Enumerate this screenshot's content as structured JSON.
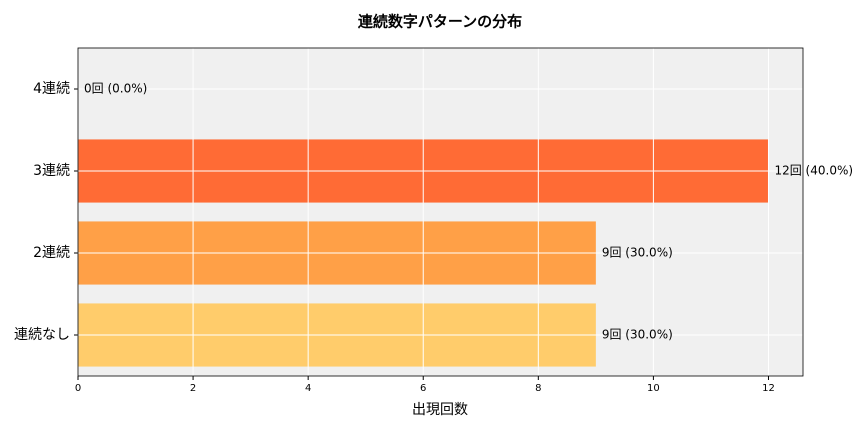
{
  "chart_data": {
    "type": "barh",
    "title": "連続数字パターンの分布",
    "xlabel": "出現回数",
    "categories": [
      "4連続",
      "3連続",
      "2連続",
      "連続なし"
    ],
    "values": [
      0,
      12,
      9,
      9
    ],
    "value_labels": [
      "0回 (0.0%)",
      "12回 (40.0%)",
      "9回 (30.0%)",
      "9回 (30.0%)"
    ],
    "colors": [
      "#ff3b30",
      "#ff6b35",
      "#ffa047",
      "#ffcc6b"
    ],
    "xlim": [
      0,
      12.6
    ],
    "xticks": [
      0,
      2,
      4,
      6,
      8,
      10,
      12
    ],
    "grid": true
  }
}
